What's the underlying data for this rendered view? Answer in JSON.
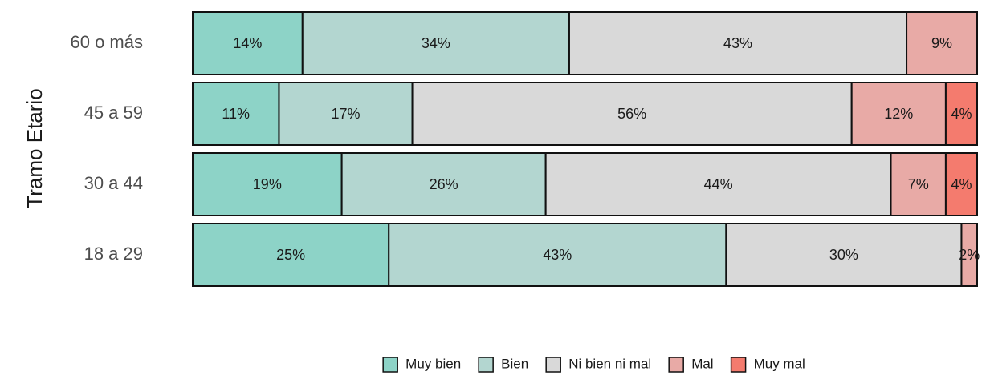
{
  "chart_data": {
    "type": "stacked-barh",
    "ylabel": "Tramo Etario",
    "categories": [
      "60 o más",
      "45 a 59",
      "30 a 44",
      "18 a 29"
    ],
    "xlim": [
      0,
      100
    ],
    "series": [
      {
        "name": "Muy bien",
        "color": "#8dd3c7",
        "values": [
          14,
          11,
          19,
          25
        ],
        "value_labels": [
          "14%",
          "11%",
          "19%",
          "25%"
        ]
      },
      {
        "name": "Bien",
        "color": "#b3d6d0",
        "values": [
          34,
          17,
          26,
          43
        ],
        "value_labels": [
          "34%",
          "17%",
          "26%",
          "43%"
        ]
      },
      {
        "name": "Ni bien ni mal",
        "color": "#d9d9d9",
        "values": [
          43,
          56,
          44,
          30
        ],
        "value_labels": [
          "43%",
          "56%",
          "44%",
          "30%"
        ]
      },
      {
        "name": "Mal",
        "color": "#e8aaa6",
        "values": [
          9,
          12,
          7,
          2
        ],
        "value_labels": [
          "9%",
          "12%",
          "7%",
          "2%"
        ]
      },
      {
        "name": "Muy mal",
        "color": "#f47b6e",
        "values": [
          null,
          4,
          4,
          null
        ],
        "value_labels": [
          null,
          "4%",
          "4%",
          null
        ]
      }
    ],
    "legend": "bottom"
  }
}
